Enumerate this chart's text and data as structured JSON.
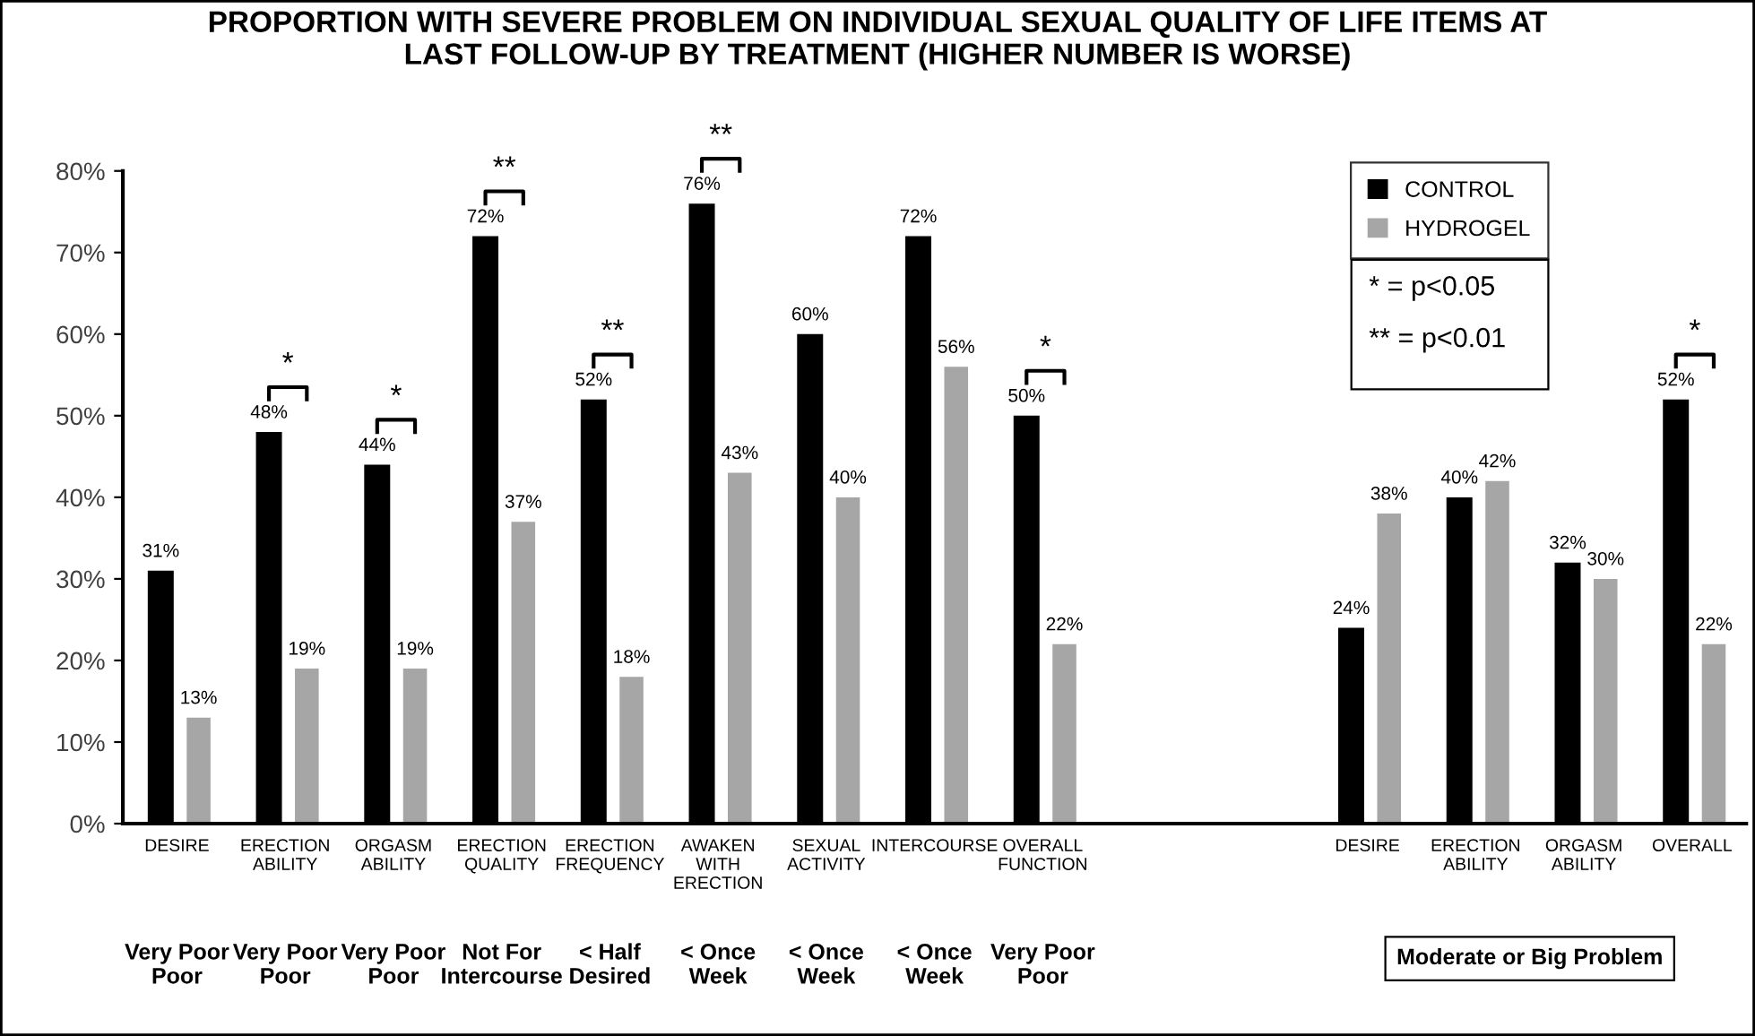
{
  "chart_data": {
    "type": "bar",
    "title": "PROPORTION WITH SEVERE PROBLEM ON INDIVIDUAL SEXUAL QUALITY OF LIFE ITEMS AT\nLAST FOLLOW-UP BY TREATMENT (HIGHER NUMBER IS WORSE)",
    "categories": [
      "DESIRE",
      "ERECTION\nABILITY",
      "ORGASM\nABILITY",
      "ERECTION\nQUALITY",
      "ERECTION\nFREQUENCY",
      "AWAKEN\nWITH\nERECTION",
      "SEXUAL\nACTIVITY",
      "INTERCOURSE",
      "OVERALL\nFUNCTION",
      null,
      null,
      "DESIRE",
      "ERECTION\nABILITY",
      "ORGASM\nABILITY",
      "OVERALL"
    ],
    "series": [
      {
        "name": "CONTROL",
        "color": "#000000",
        "values": [
          31,
          48,
          44,
          72,
          52,
          76,
          60,
          72,
          50,
          null,
          null,
          24,
          40,
          32,
          52
        ],
        "value_labels": [
          "31%",
          "48%",
          "44%",
          "72%",
          "52%",
          "76%",
          "60%",
          "72%",
          "50%",
          null,
          null,
          "24%",
          "40%",
          "32%",
          "52%"
        ]
      },
      {
        "name": "HYDROGEL",
        "color": "#a6a6a6",
        "values": [
          13,
          19,
          19,
          37,
          18,
          43,
          40,
          56,
          22,
          null,
          null,
          38,
          42,
          30,
          22
        ],
        "value_labels": [
          "13%",
          "19%",
          "19%",
          "37%",
          "18%",
          "43%",
          "40%",
          "56%",
          "22%",
          null,
          null,
          "38%",
          "42%",
          "30%",
          "22%"
        ]
      }
    ],
    "ylim": [
      0,
      80
    ],
    "yticks": [
      {
        "value": 0,
        "label": "0%"
      },
      {
        "value": 10,
        "label": "10%"
      },
      {
        "value": 20,
        "label": "20%"
      },
      {
        "value": 30,
        "label": "30%"
      },
      {
        "value": 40,
        "label": "40%"
      },
      {
        "value": 50,
        "label": "50%"
      },
      {
        "value": 60,
        "label": "60%"
      },
      {
        "value": 70,
        "label": "70%"
      },
      {
        "value": 80,
        "label": "80%"
      }
    ],
    "grid": false,
    "legend": "top right",
    "annotations": [
      "*",
      "*",
      "**",
      "**",
      "**",
      "*",
      "*",
      "Very Poor\nPoor",
      "Very Poor\nPoor",
      "Very Poor\nPoor",
      "Not For\nIntercourse",
      "< Half\nDesired",
      "< Once\nWeek",
      "< Once\nWeek",
      "< Once\nWeek",
      "Very Poor\nPoor",
      "Moderate or Big Problem",
      "* = p<0.05",
      "** = p<0.01"
    ]
  }
}
